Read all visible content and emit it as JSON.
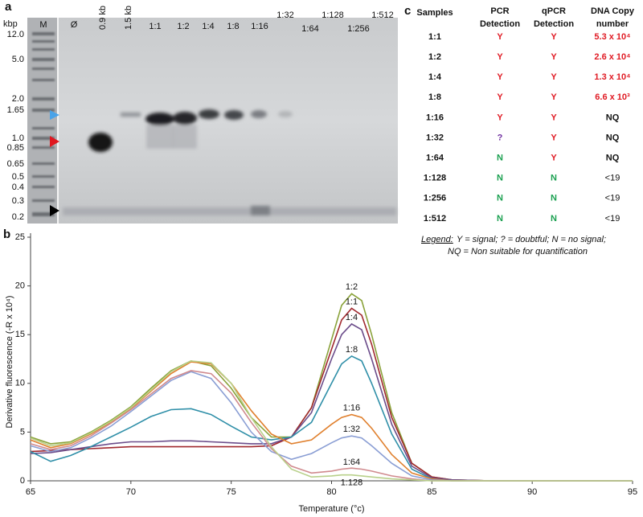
{
  "panel_a": {
    "label": "a",
    "unit": "kbp",
    "ladder_labels": [
      "12.0",
      "5.0",
      "2.0",
      "1.65",
      "1.0",
      "0.85",
      "0.65",
      "0.5",
      "0.4",
      "0.3",
      "0.2"
    ],
    "lanes": [
      "M",
      "Ø",
      "0.9 kb",
      "1.5 kb",
      "1:1",
      "1:2",
      "1:4",
      "1:8",
      "1:16",
      "1:32",
      "1:64",
      "1:128",
      "1:256",
      "1:512"
    ]
  },
  "chart_data": {
    "type": "line",
    "panel_label": "b",
    "xlabel": "Temperature (°c)",
    "ylabel": "Derivative fluorescence (-R x 10⁴)",
    "x": [
      65,
      66,
      67,
      68,
      69,
      70,
      71,
      72,
      73,
      74,
      75,
      76,
      77,
      78,
      79,
      80,
      80.5,
      81,
      81.5,
      82,
      83,
      84,
      85,
      86,
      88,
      90,
      92,
      95
    ],
    "xlim": [
      65,
      95
    ],
    "xticks": [
      65,
      70,
      75,
      80,
      85,
      90,
      95
    ],
    "ylim": [
      0,
      25
    ],
    "yticks": [
      0,
      5,
      10,
      15,
      20,
      25
    ],
    "series": [
      {
        "name": "1:2",
        "color": "#8aa23a",
        "values": [
          4.5,
          3.8,
          4.0,
          5.0,
          6.2,
          7.6,
          9.5,
          11.3,
          12.3,
          11.8,
          9.5,
          6.5,
          4.5,
          4.5,
          7.5,
          14.5,
          18,
          19.2,
          18.5,
          15,
          7,
          1.8,
          0.4,
          0.1,
          0,
          0,
          0,
          0
        ]
      },
      {
        "name": "1:1",
        "color": "#a0282e",
        "values": [
          3.0,
          3.1,
          3.2,
          3.3,
          3.4,
          3.5,
          3.5,
          3.5,
          3.5,
          3.5,
          3.5,
          3.5,
          3.6,
          4.5,
          7.5,
          13.5,
          16.5,
          17.7,
          17,
          14,
          6.5,
          1.8,
          0.4,
          0.1,
          0,
          0,
          0,
          0
        ]
      },
      {
        "name": "1:4",
        "color": "#6b4c8a",
        "values": [
          2.8,
          2.9,
          3.2,
          3.5,
          3.8,
          4.0,
          4.0,
          4.1,
          4.1,
          4.0,
          3.9,
          3.8,
          3.8,
          4.5,
          7,
          12.5,
          15,
          16.1,
          15.5,
          12.5,
          5.8,
          1.5,
          0.3,
          0.1,
          0,
          0,
          0,
          0
        ]
      },
      {
        "name": "1:8",
        "color": "#2f8fa8",
        "values": [
          3.0,
          2.0,
          2.6,
          3.5,
          4.5,
          5.5,
          6.6,
          7.3,
          7.4,
          6.8,
          5.6,
          4.5,
          4.2,
          4.5,
          6,
          10,
          12,
          12.8,
          12.3,
          10,
          4.8,
          1.2,
          0.2,
          0,
          0,
          0,
          0,
          0
        ]
      },
      {
        "name": "1:16",
        "color": "#e0802e",
        "values": [
          4.2,
          3.4,
          3.8,
          4.8,
          6.0,
          7.4,
          9.2,
          11,
          12.2,
          12,
          10,
          7.2,
          4.8,
          3.8,
          4.2,
          5.8,
          6.5,
          6.8,
          6.5,
          5.4,
          2.7,
          0.8,
          0.2,
          0,
          0,
          0,
          0,
          0
        ]
      },
      {
        "name": "1:32",
        "color": "#8a9ed4",
        "values": [
          3.6,
          3.0,
          3.4,
          4.4,
          5.6,
          7.1,
          8.7,
          10.3,
          11.2,
          10.5,
          8,
          5,
          3,
          2.2,
          2.8,
          3.9,
          4.4,
          4.6,
          4.4,
          3.6,
          1.8,
          0.5,
          0.1,
          0,
          0,
          0,
          0,
          0
        ]
      },
      {
        "name": "1:64",
        "color": "#d08a8e",
        "values": [
          3.8,
          3.2,
          3.6,
          4.6,
          5.9,
          7.3,
          8.9,
          10.5,
          11.3,
          11,
          9,
          6,
          3.3,
          1.5,
          0.8,
          1.0,
          1.2,
          1.3,
          1.2,
          1.0,
          0.5,
          0.2,
          0,
          0,
          0,
          0,
          0,
          0
        ]
      },
      {
        "name": "1:128",
        "color": "#b8d08a",
        "values": [
          4.4,
          3.6,
          3.9,
          4.9,
          6.1,
          7.5,
          9.3,
          11.2,
          12.3,
          12.1,
          10,
          6.5,
          3.5,
          1.2,
          0.4,
          0.5,
          0.6,
          0.6,
          0.5,
          0.4,
          0.2,
          0.1,
          0,
          0,
          0,
          0,
          0,
          0
        ]
      }
    ]
  },
  "panel_c": {
    "label": "c",
    "header": [
      [
        "Samples"
      ],
      [
        "PCR",
        "Detection"
      ],
      [
        "qPCR",
        "Detection"
      ],
      [
        "DNA Copy",
        "number"
      ]
    ],
    "rows": [
      [
        "1:1",
        "Y",
        "Y",
        "5.3 x 10⁴"
      ],
      [
        "1:2",
        "Y",
        "Y",
        "2.6 x 10⁴"
      ],
      [
        "1:4",
        "Y",
        "Y",
        "1.3 x 10⁴"
      ],
      [
        "1:8",
        "Y",
        "Y",
        "6.6 x 10³"
      ],
      [
        "1:16",
        "Y",
        "Y",
        "NQ"
      ],
      [
        "1:32",
        "?",
        "Y",
        "NQ"
      ],
      [
        "1:64",
        "N",
        "Y",
        "NQ"
      ],
      [
        "1:128",
        "N",
        "N",
        "<19"
      ],
      [
        "1:256",
        "N",
        "N",
        "<19"
      ],
      [
        "1:512",
        "N",
        "N",
        "<19"
      ]
    ],
    "legend": {
      "title": "Legend:",
      "lines": [
        "Y = signal; ? = doubtful; N = no signal;",
        "NQ = Non suitable for quantification"
      ]
    }
  }
}
